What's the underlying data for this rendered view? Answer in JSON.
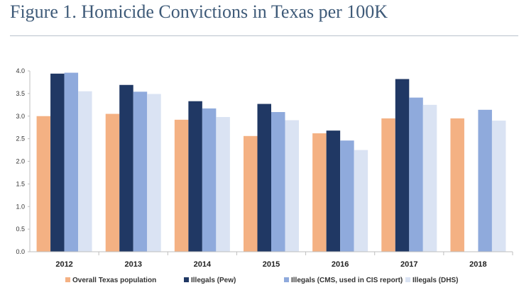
{
  "figure": {
    "title": "Figure 1. Homicide Convictions in Texas per 100K"
  },
  "chart_data": {
    "type": "bar",
    "title": "",
    "xlabel": "",
    "ylabel": "",
    "ylim": [
      0,
      4.0
    ],
    "yticks": [
      "0.0",
      "0.5",
      "1.0",
      "1.5",
      "2.0",
      "2.5",
      "3.0",
      "3.5",
      "4.0"
    ],
    "grid": false,
    "legend_position": "bottom",
    "categories": [
      "2012",
      "2013",
      "2014",
      "2015",
      "2016",
      "2017",
      "2018"
    ],
    "series": [
      {
        "name": "Overall Texas population",
        "color": "#f4b183",
        "values": [
          3.0,
          3.05,
          2.92,
          2.56,
          2.62,
          2.95,
          2.95
        ]
      },
      {
        "name": "Illegals (Pew)",
        "color": "#203864",
        "values": [
          3.94,
          3.69,
          3.33,
          3.27,
          2.68,
          3.82,
          null
        ]
      },
      {
        "name": "Illegals (CMS, used in CIS report)",
        "color": "#8faadc",
        "values": [
          3.96,
          3.54,
          3.17,
          3.09,
          2.46,
          3.41,
          3.14
        ]
      },
      {
        "name": "Illegals (DHS)",
        "color": "#dae3f3",
        "values": [
          3.55,
          3.49,
          2.98,
          2.91,
          2.25,
          3.25,
          2.9
        ]
      }
    ]
  }
}
